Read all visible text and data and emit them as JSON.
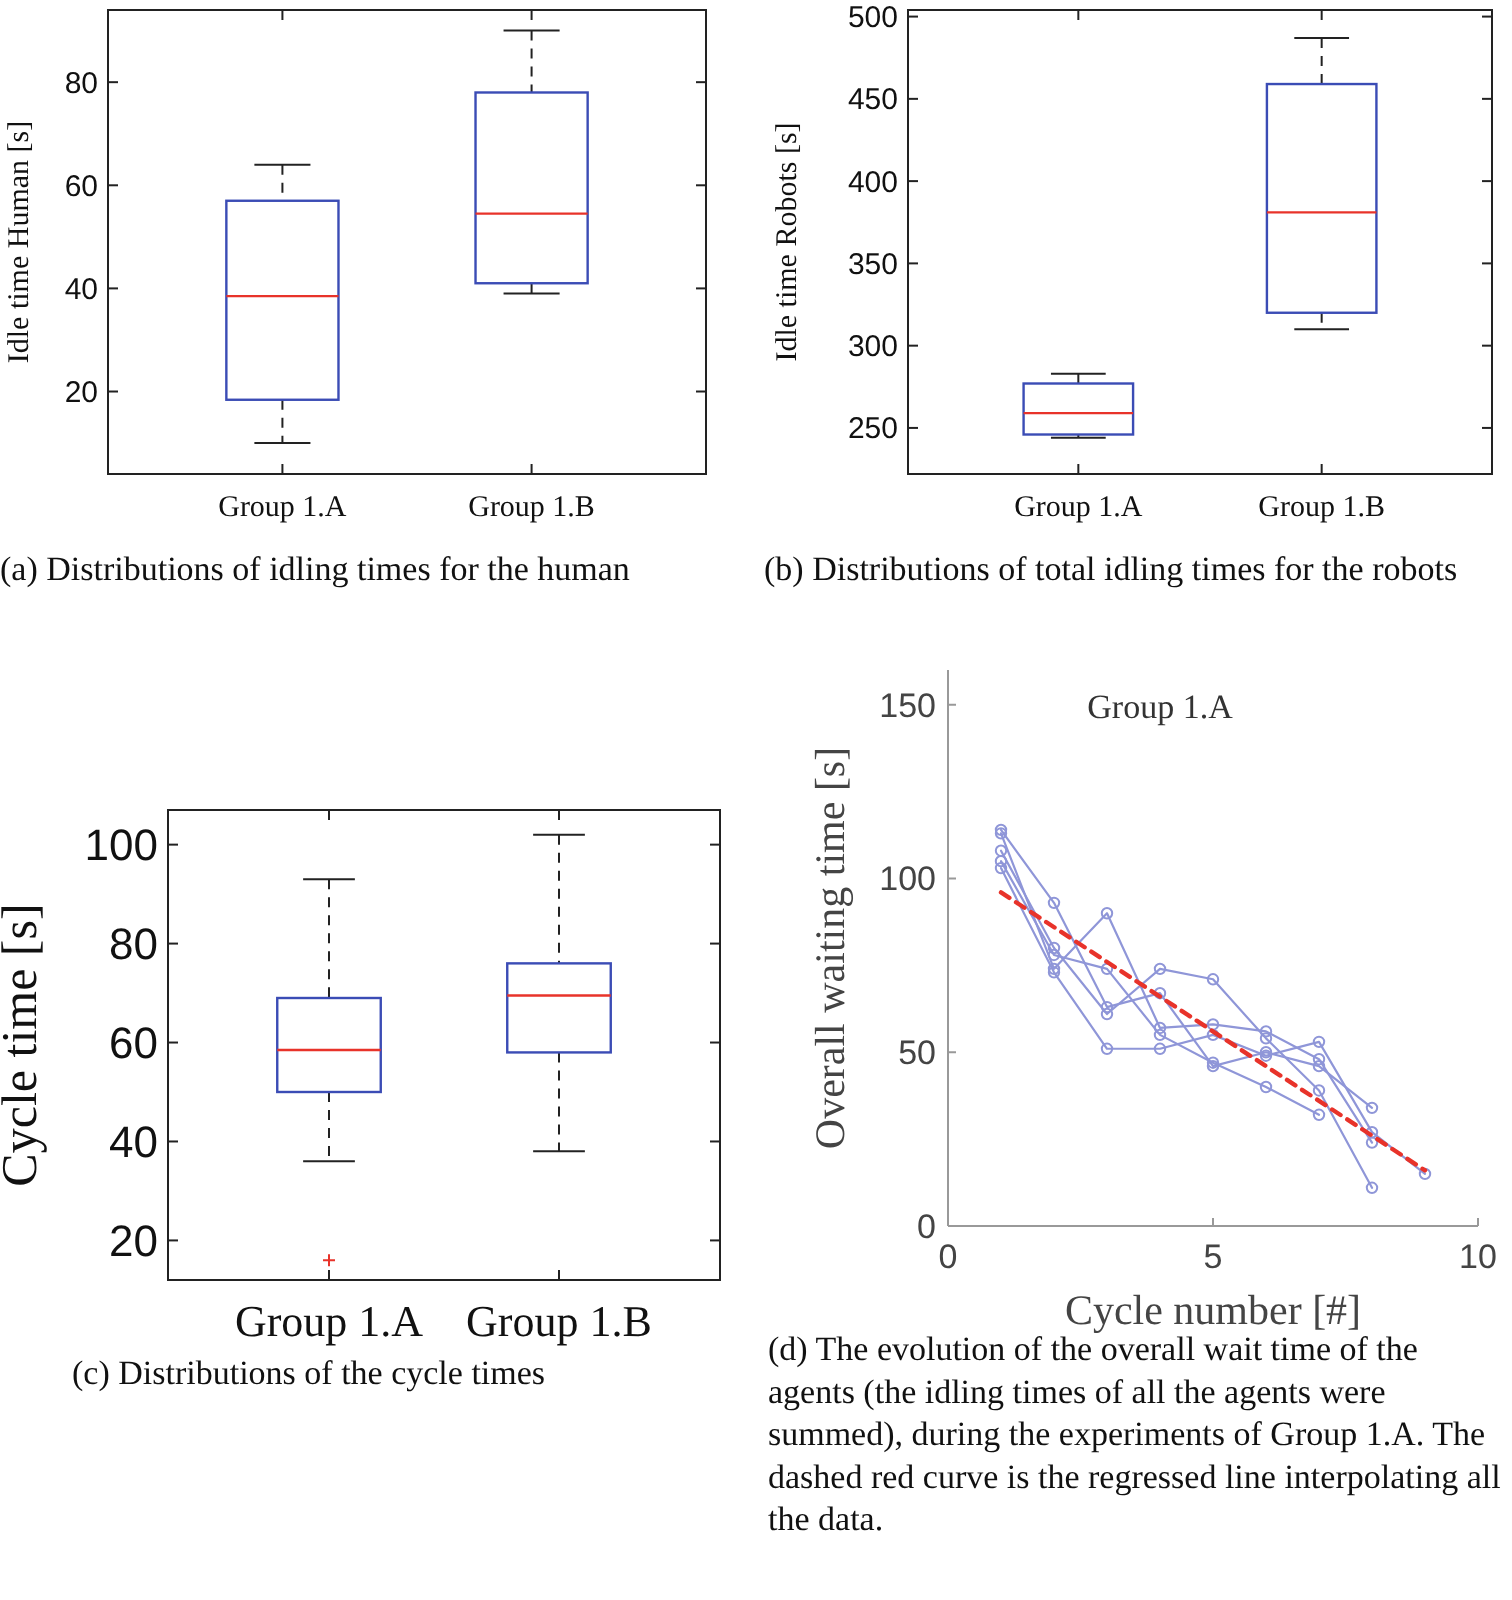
{
  "chart_data": [
    {
      "type": "box",
      "categories": [
        "Group 1.A",
        "Group 1.B"
      ],
      "color": "#3b4cb5",
      "ylabel": "Idle time Human [s]",
      "ylim": [
        4,
        94
      ],
      "yticks": [
        20,
        40,
        60,
        80
      ],
      "boxes": [
        {
          "low": 10,
          "q1": 18.4,
          "median": 38.5,
          "q3": 57,
          "high": 64
        },
        {
          "low": 39,
          "q1": 41,
          "median": 54.5,
          "q3": 78,
          "high": 90
        }
      ],
      "annotations": [
        "(a) Distributions of idling times for the human"
      ]
    },
    {
      "type": "box",
      "categories": [
        "Group 1.A",
        "Group 1.B"
      ],
      "color": "#3b4cb5",
      "ylabel": "Idle time Robots [s]",
      "ylim": [
        222,
        504
      ],
      "yticks": [
        250,
        300,
        350,
        400,
        450,
        500
      ],
      "boxes": [
        {
          "low": 244,
          "q1": 246,
          "median": 259,
          "q3": 277,
          "high": 283
        },
        {
          "low": 310,
          "q1": 320,
          "median": 381,
          "q3": 459,
          "high": 487
        }
      ],
      "annotations": [
        "(b) Distributions of total idling times for the robots"
      ]
    },
    {
      "type": "box",
      "categories": [
        "Group 1.A",
        "Group 1.B"
      ],
      "color": "#3b4cb5",
      "ylabel": "Cycle time [s]",
      "ylim": [
        12,
        107
      ],
      "yticks": [
        20,
        40,
        60,
        80,
        100
      ],
      "boxes": [
        {
          "low": 36,
          "q1": 50,
          "median": 58.5,
          "q3": 69,
          "high": 93,
          "outliers": [
            16
          ]
        },
        {
          "low": 38,
          "q1": 58,
          "median": 69.5,
          "q3": 76,
          "high": 102
        }
      ],
      "annotations": [
        "(c) Distributions of the cycle times"
      ]
    },
    {
      "type": "line",
      "title": "Group 1.A",
      "xlabel": "Cycle number [#]",
      "ylabel": "Overall waiting time [s]",
      "xlim": [
        0,
        10
      ],
      "ylim": [
        0,
        160
      ],
      "xticks": [
        0,
        5,
        10
      ],
      "yticks": [
        0,
        50,
        100,
        150
      ],
      "marker": "circle",
      "grid": false,
      "x": [
        1,
        2,
        3,
        4,
        5,
        6,
        7,
        8,
        9
      ],
      "series": [
        {
          "color": "#8f96d8",
          "values": [
            114,
            93,
            63,
            67,
            46,
            50,
            46,
            34,
            null
          ]
        },
        {
          "color": "#8f96d8",
          "values": [
            113,
            74,
            90,
            57,
            58,
            56,
            48,
            24,
            null
          ]
        },
        {
          "color": "#8f96d8",
          "values": [
            108,
            80,
            61,
            74,
            71,
            54,
            39,
            11,
            null
          ]
        },
        {
          "color": "#8f96d8",
          "values": [
            105,
            78,
            74,
            55,
            47,
            40,
            32,
            null,
            null
          ]
        },
        {
          "color": "#8f96d8",
          "values": [
            103,
            73,
            51,
            51,
            55,
            49,
            53,
            27,
            15
          ]
        },
        {
          "type": "line",
          "color": "#e8332a",
          "line_style": "dashed",
          "marker": "none",
          "x": [
            1,
            9
          ],
          "values": [
            96,
            16
          ]
        }
      ],
      "annotations": [
        "(d) The evolution of the overall wait time of the agents (the idling times of all the agents were summed), during the experiments of Group 1.A. The dashed red curve is the regressed line interpolating all the data."
      ]
    }
  ]
}
